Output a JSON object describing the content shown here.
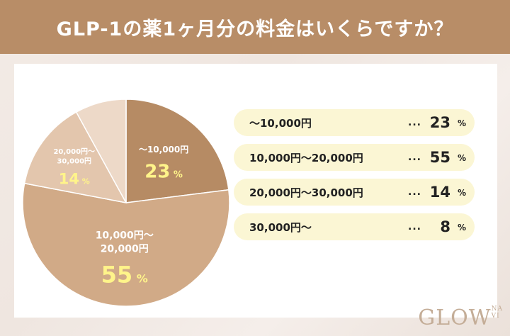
{
  "title": "GLP-1の薬1ヶ月分の料金はいくらですか？",
  "chart_data": {
    "type": "pie",
    "title": "GLP-1の薬1ヶ月分の料金はいくらですか？",
    "categories": [
      "〜10,000円",
      "10,000円〜20,000円",
      "20,000円〜30,000円",
      "30,000円〜"
    ],
    "values": [
      23,
      55,
      14,
      8
    ],
    "unit": "%",
    "colors": [
      "#b68b64",
      "#d1aa87",
      "#e3c6ad",
      "#edd9c8"
    ],
    "slice_labels": [
      {
        "line1": "〜10,000円",
        "line2": "",
        "value": "23",
        "unit": "%"
      },
      {
        "line1": "10,000円〜",
        "line2": "20,000円",
        "value": "55",
        "unit": "%"
      },
      {
        "line1": "20,000円〜",
        "line2": "30,000円",
        "value": "14",
        "unit": "%"
      }
    ],
    "legend": [
      {
        "label": "〜10,000円",
        "dots": "...",
        "value": "23",
        "unit": "%"
      },
      {
        "label": "10,000円〜20,000円",
        "dots": "...",
        "value": "55",
        "unit": "%"
      },
      {
        "label": "20,000円〜30,000円",
        "dots": "...",
        "value": "14",
        "unit": "%"
      },
      {
        "label": "30,000円〜",
        "dots": "...",
        "value": "8",
        "unit": "%"
      }
    ]
  },
  "logo": {
    "main": "GLOW",
    "sub1": "NA",
    "sub2": "VI"
  }
}
